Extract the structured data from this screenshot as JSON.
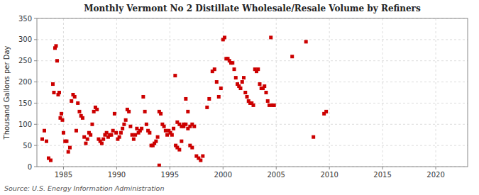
{
  "chart_data": {
    "type": "scatter",
    "title": "Monthly Vermont No 2 Distillate Wholesale/Resale Volume by Refiners",
    "y_label": "Thousand Gallons per Day",
    "annotations": [
      "Source: U.S. Energy Information Administration"
    ],
    "color": "#cc0000",
    "marker": "square",
    "grid": true,
    "xlim": [
      1982.5,
      2023
    ],
    "ylim": [
      0,
      350
    ],
    "xticks": [
      1985,
      1990,
      1995,
      2000,
      2005,
      2010,
      2015,
      2020
    ],
    "yticks": [
      0,
      50,
      100,
      150,
      200,
      250,
      300,
      350
    ],
    "x": [
      1983.0,
      1983.2,
      1983.4,
      1983.6,
      1983.8,
      1984.0,
      1984.1,
      1984.2,
      1984.3,
      1984.4,
      1984.5,
      1984.6,
      1984.7,
      1984.8,
      1984.9,
      1985.0,
      1985.15,
      1985.3,
      1985.45,
      1985.6,
      1985.75,
      1985.9,
      1986.05,
      1986.2,
      1986.35,
      1986.5,
      1986.65,
      1986.8,
      1986.95,
      1987.1,
      1987.25,
      1987.4,
      1987.55,
      1987.7,
      1987.85,
      1988.0,
      1988.15,
      1988.3,
      1988.45,
      1988.6,
      1988.75,
      1988.9,
      1989.05,
      1989.2,
      1989.35,
      1989.5,
      1989.65,
      1989.8,
      1989.95,
      1990.1,
      1990.25,
      1990.4,
      1990.55,
      1990.7,
      1990.85,
      1991.0,
      1991.15,
      1991.3,
      1991.45,
      1991.6,
      1991.75,
      1991.9,
      1992.05,
      1992.2,
      1992.35,
      1992.5,
      1992.65,
      1992.8,
      1992.95,
      1993.1,
      1993.25,
      1993.4,
      1993.55,
      1993.7,
      1993.85,
      1994.0,
      1994.15,
      1994.3,
      1994.45,
      1994.6,
      1994.75,
      1994.9,
      1995.05,
      1995.2,
      1995.35,
      1995.5,
      1995.7,
      1995.9,
      1996.1,
      1996.3,
      1996.5,
      1996.7,
      1996.9,
      1997.1,
      1997.3,
      1994.0,
      1995.55,
      1995.7,
      1995.9,
      1996.1,
      1996.3,
      1996.5,
      1996.7,
      1996.9,
      1997.1,
      1997.5,
      1997.7,
      1997.9,
      1998.1,
      1998.5,
      1998.7,
      1999.0,
      1999.2,
      1999.4,
      1999.6,
      1999.8,
      2000.0,
      2000.15,
      2000.3,
      2000.45,
      2000.6,
      2000.75,
      2000.9,
      2001.05,
      2001.2,
      2001.35,
      2001.5,
      2001.65,
      2001.8,
      2001.95,
      2002.1,
      2002.25,
      2002.4,
      2002.55,
      2002.7,
      2002.85,
      2003.0,
      2003.15,
      2003.3,
      2003.45,
      2003.6,
      2003.75,
      2003.9,
      2004.05,
      2004.2,
      2004.35,
      2004.5,
      2004.65,
      2004.8,
      2006.5,
      2007.8,
      2008.5,
      2009.5,
      2009.7
    ],
    "values": [
      65,
      85,
      60,
      20,
      15,
      195,
      175,
      280,
      285,
      250,
      170,
      175,
      115,
      125,
      110,
      80,
      60,
      60,
      35,
      45,
      155,
      170,
      165,
      85,
      150,
      130,
      120,
      115,
      70,
      55,
      65,
      80,
      75,
      100,
      130,
      140,
      135,
      65,
      60,
      55,
      65,
      75,
      80,
      70,
      75,
      75,
      85,
      125,
      80,
      65,
      70,
      80,
      90,
      100,
      110,
      135,
      130,
      95,
      75,
      65,
      75,
      90,
      80,
      85,
      90,
      165,
      130,
      100,
      85,
      80,
      50,
      50,
      55,
      60,
      70,
      130,
      125,
      100,
      95,
      85,
      75,
      85,
      80,
      75,
      90,
      215,
      105,
      100,
      95,
      100,
      160,
      130,
      95,
      100,
      95,
      3,
      50,
      45,
      40,
      60,
      95,
      100,
      90,
      50,
      45,
      25,
      20,
      15,
      25,
      140,
      160,
      225,
      230,
      200,
      165,
      185,
      300,
      305,
      255,
      255,
      250,
      245,
      245,
      230,
      210,
      195,
      190,
      185,
      200,
      210,
      175,
      165,
      155,
      150,
      150,
      145,
      230,
      225,
      230,
      195,
      185,
      185,
      190,
      175,
      155,
      145,
      305,
      145,
      145,
      260,
      295,
      70,
      125,
      130
    ]
  }
}
